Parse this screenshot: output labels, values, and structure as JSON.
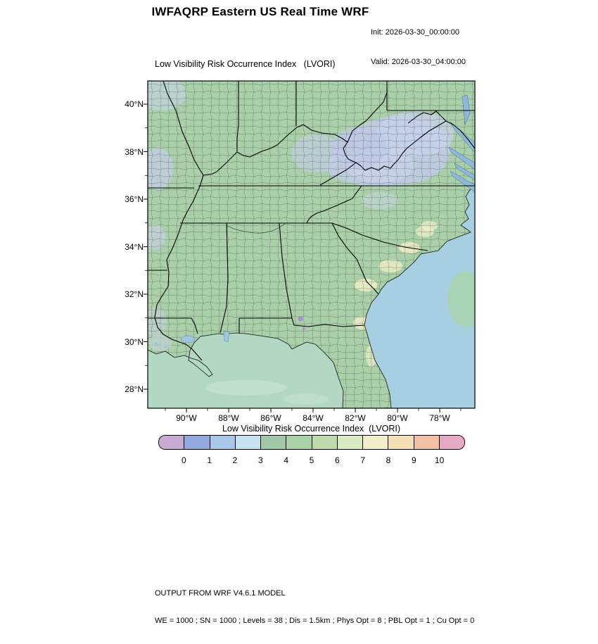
{
  "header": {
    "title": "IWFAQRP Eastern US Real Time WRF",
    "init_label": "Init: 2026-03-30_00:00:00",
    "valid_label": "Valid: 2026-03-30_04:00:00"
  },
  "map": {
    "title": "Low Visibility Risk Occurrence Index   (LVORI)",
    "lat_ticks": [
      "40°N",
      "38°N",
      "36°N",
      "34°N",
      "32°N",
      "30°N",
      "28°N"
    ],
    "lon_ticks": [
      "90°W",
      "88°W",
      "86°W",
      "84°W",
      "82°W",
      "80°W",
      "78°W"
    ],
    "land_color": "#a9d0a8",
    "atlantic_color": "#a6cfe1",
    "gulf_color": "#b2d7c3"
  },
  "colorbar": {
    "title": "Low Visibility Risk Occurrence Index  (LVORI)",
    "tick_labels": [
      "0",
      "1",
      "2",
      "3",
      "4",
      "5",
      "6",
      "7",
      "8",
      "9",
      "10"
    ],
    "colors": [
      "#c7abd3",
      "#93a9e0",
      "#a8c8ea",
      "#c6e1ef",
      "#9fc9a7",
      "#a9d2a6",
      "#bedcab",
      "#d9ebc0",
      "#f2efca",
      "#f5dfb5",
      "#f2bfa5",
      "#e5aac6"
    ]
  },
  "footer": {
    "line1": "OUTPUT FROM WRF V4.6.1 MODEL",
    "line2": "WE = 1000 ; SN = 1000 ; Levels = 38 ; Dis = 1.5km ; Phys Opt = 8 ; PBL Opt = 1 ; Cu Opt = 0"
  }
}
